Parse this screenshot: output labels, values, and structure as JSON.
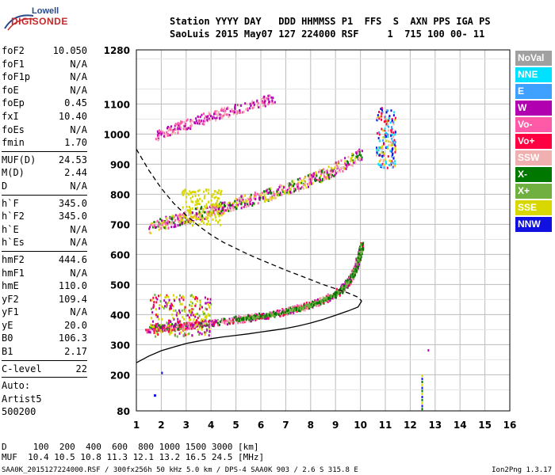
{
  "logo": {
    "line1": "Lowell",
    "line2": "DIGISONDE"
  },
  "header": {
    "line1": "Station YYYY DAY   DDD HHMMSS P1  FFS  S  AXN PPS IGA PS",
    "line2": "SaoLuis 2015 May07 127 224000 RSF     1  715 100 00- 11"
  },
  "params": [
    [
      {
        "key": "foF2",
        "value": "10.050"
      },
      {
        "key": "foF1",
        "value": "N/A"
      },
      {
        "key": "foF1p",
        "value": "N/A"
      },
      {
        "key": "foE",
        "value": "N/A"
      },
      {
        "key": "foEp",
        "value": "0.45"
      },
      {
        "key": "fxI",
        "value": "10.40"
      },
      {
        "key": "foEs",
        "value": "N/A"
      },
      {
        "key": "fmin",
        "value": "1.70"
      }
    ],
    [
      {
        "key": "MUF(D)",
        "value": "24.53"
      },
      {
        "key": "M(D)",
        "value": "2.44"
      },
      {
        "key": "D",
        "value": "N/A"
      }
    ],
    [
      {
        "key": "h`F",
        "value": "345.0"
      },
      {
        "key": "h`F2",
        "value": "345.0"
      },
      {
        "key": "h`E",
        "value": "N/A"
      },
      {
        "key": "h`Es",
        "value": "N/A"
      }
    ],
    [
      {
        "key": "hmF2",
        "value": "444.6"
      },
      {
        "key": "hmF1",
        "value": "N/A"
      },
      {
        "key": "hmE",
        "value": "110.0"
      },
      {
        "key": "yF2",
        "value": "109.4"
      },
      {
        "key": "yF1",
        "value": "N/A"
      },
      {
        "key": "yE",
        "value": "20.0"
      },
      {
        "key": "B0",
        "value": "106.3"
      },
      {
        "key": "B1",
        "value": "2.17"
      }
    ],
    [
      {
        "key": "C-level",
        "value": "22"
      }
    ]
  ],
  "autoscale": {
    "line1": "Auto:",
    "line2": "Artist5",
    "line3": "500200"
  },
  "legend": [
    {
      "label": "NoVal",
      "color": "#a0a0a0"
    },
    {
      "label": "NNE",
      "color": "#00e0ff"
    },
    {
      "label": "E",
      "color": "#3ea0ff"
    },
    {
      "label": "W",
      "color": "#b000b0"
    },
    {
      "label": "Vo-",
      "color": "#ff5aa8"
    },
    {
      "label": "Vo+",
      "color": "#ff0040"
    },
    {
      "label": "SSW",
      "color": "#f0b0b0"
    },
    {
      "label": "X-",
      "color": "#007800"
    },
    {
      "label": "X+",
      "color": "#70b040"
    },
    {
      "label": "SSE",
      "color": "#d8d800"
    },
    {
      "label": "NNW",
      "color": "#1010e0"
    }
  ],
  "footer": {
    "line1": "D     100  200  400  600  800 1000 1500 3000 [km]",
    "line2": "MUF  10.4 10.5 10.8 11.3 12.1 13.2 16.5 24.5 [MHz]",
    "file": "SAA0K_2015127224000.RSF / 300fx256h 50 kHz 5.0 km / DPS-4 SAA0K 903 / 2.6 S 315.8 E",
    "version": "Ion2Png 1.3.17"
  },
  "chart_data": {
    "type": "scatter",
    "xlim": [
      1,
      16
    ],
    "ylim": [
      80,
      1280
    ],
    "xticks": [
      "1",
      "2",
      "3",
      "4",
      "5",
      "6",
      "7",
      "8",
      "9",
      "10",
      "11",
      "12",
      "13",
      "14",
      "15",
      "16"
    ],
    "yticks": [
      {
        "value": 80,
        "label": "80"
      },
      {
        "value": 200,
        "label": "200"
      },
      {
        "value": 300,
        "label": "300"
      },
      {
        "value": 400,
        "label": "400"
      },
      {
        "value": 500,
        "label": "500"
      },
      {
        "value": 600,
        "label": "600"
      },
      {
        "value": 700,
        "label": "700"
      },
      {
        "value": 800,
        "label": "800"
      },
      {
        "value": 900,
        "label": "900"
      },
      {
        "value": 1000,
        "label": "1000"
      },
      {
        "value": 1100,
        "label": "1100"
      },
      {
        "value": 1280,
        "label": "1280"
      }
    ],
    "grid": true,
    "profile_curve": [
      [
        1.0,
        240
      ],
      [
        1.5,
        262
      ],
      [
        2.0,
        280
      ],
      [
        2.5,
        292
      ],
      [
        3.0,
        304
      ],
      [
        3.5,
        312
      ],
      [
        4.0,
        320
      ],
      [
        4.5,
        326
      ],
      [
        5.0,
        331
      ],
      [
        5.5,
        336
      ],
      [
        6.0,
        342
      ],
      [
        6.5,
        348
      ],
      [
        7.0,
        354
      ],
      [
        7.5,
        362
      ],
      [
        8.0,
        372
      ],
      [
        8.5,
        384
      ],
      [
        9.0,
        398
      ],
      [
        9.5,
        412
      ],
      [
        9.9,
        425
      ],
      [
        10.05,
        445
      ]
    ],
    "profile_topside": [
      [
        1.0,
        950
      ],
      [
        1.5,
        880
      ],
      [
        2.0,
        820
      ],
      [
        2.5,
        770
      ],
      [
        3.0,
        730
      ],
      [
        3.5,
        695
      ],
      [
        4.0,
        665
      ],
      [
        4.5,
        640
      ],
      [
        5.0,
        620
      ],
      [
        5.5,
        600
      ],
      [
        6.0,
        582
      ],
      [
        6.5,
        565
      ],
      [
        7.0,
        548
      ],
      [
        7.5,
        532
      ],
      [
        8.0,
        516
      ],
      [
        8.5,
        500
      ],
      [
        9.0,
        486
      ],
      [
        9.5,
        472
      ],
      [
        9.9,
        458
      ],
      [
        10.05,
        445
      ]
    ],
    "trace_F2": [
      [
        1.4,
        355
      ],
      [
        1.8,
        358
      ],
      [
        2.2,
        360
      ],
      [
        2.6,
        362
      ],
      [
        3.0,
        366
      ],
      [
        3.5,
        370
      ],
      [
        4.0,
        375
      ],
      [
        4.5,
        380
      ],
      [
        5.0,
        386
      ],
      [
        5.5,
        392
      ],
      [
        6.0,
        398
      ],
      [
        6.5,
        405
      ],
      [
        7.0,
        414
      ],
      [
        7.5,
        424
      ],
      [
        8.0,
        436
      ],
      [
        8.5,
        452
      ],
      [
        9.0,
        472
      ],
      [
        9.3,
        492
      ],
      [
        9.6,
        522
      ],
      [
        9.8,
        560
      ],
      [
        9.95,
        600
      ],
      [
        10.05,
        640
      ]
    ],
    "trace_2F2": [
      [
        1.5,
        695
      ],
      [
        2.0,
        705
      ],
      [
        2.5,
        715
      ],
      [
        3.0,
        725
      ],
      [
        3.5,
        738
      ],
      [
        4.0,
        750
      ],
      [
        4.5,
        760
      ],
      [
        5.0,
        772
      ],
      [
        5.5,
        784
      ],
      [
        6.0,
        796
      ],
      [
        6.5,
        808
      ],
      [
        7.0,
        822
      ],
      [
        7.5,
        836
      ],
      [
        8.0,
        852
      ],
      [
        8.5,
        868
      ],
      [
        9.0,
        888
      ],
      [
        9.5,
        912
      ],
      [
        10.0,
        940
      ]
    ],
    "trace_3F2": [
      [
        1.8,
        1000
      ],
      [
        2.2,
        1010
      ],
      [
        2.6,
        1022
      ],
      [
        3.0,
        1035
      ],
      [
        3.5,
        1050
      ],
      [
        4.0,
        1062
      ],
      [
        4.5,
        1074
      ],
      [
        5.0,
        1086
      ],
      [
        5.5,
        1098
      ],
      [
        6.0,
        1110
      ],
      [
        6.5,
        1122
      ]
    ],
    "cluster_11MHz": [
      [
        10.6,
        900
      ],
      [
        10.8,
        930
      ],
      [
        11.0,
        960
      ],
      [
        11.1,
        990
      ],
      [
        11.2,
        940
      ],
      [
        10.9,
        1010
      ],
      [
        11.0,
        1060
      ],
      [
        11.2,
        910
      ]
    ]
  }
}
